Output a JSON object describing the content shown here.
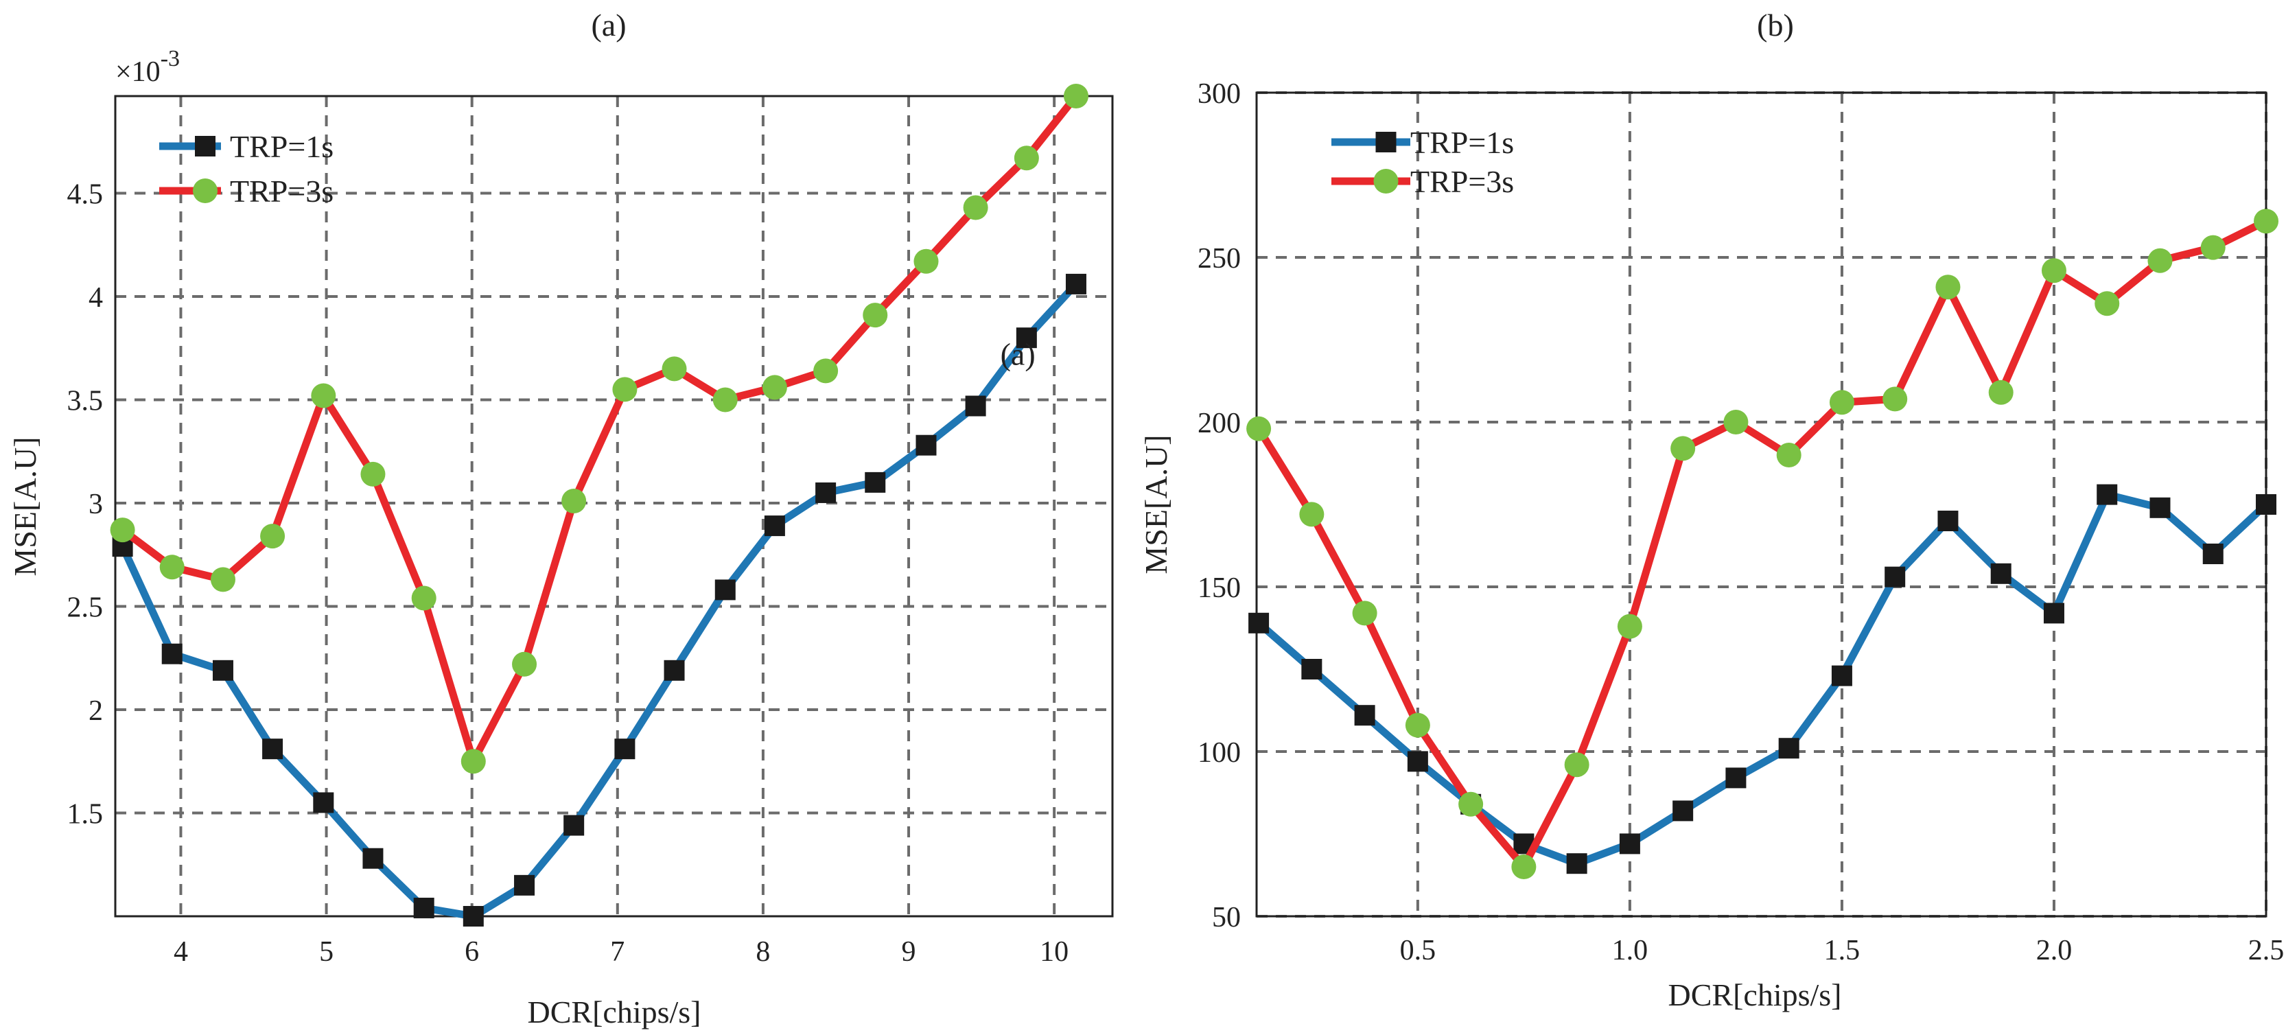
{
  "chart_data": [
    {
      "type": "line",
      "title": "(a)",
      "xlabel": "DCR[chips/s]",
      "ylabel": "MSE[A.U]",
      "exponent_label": "×10",
      "exponent_power": "-3",
      "xlim": [
        3.55,
        10.4
      ],
      "ylim": [
        1.0,
        4.97
      ],
      "xticks": [
        4,
        5,
        6,
        7,
        8,
        9,
        10
      ],
      "xtick_labels": [
        "4",
        "5",
        "6",
        "7",
        "8",
        "9",
        "10"
      ],
      "yticks": [
        1.5,
        2,
        2.5,
        3,
        3.5,
        4,
        4.5
      ],
      "ytick_labels": [
        "1.5",
        "2",
        "2.5",
        "3",
        "3.5",
        "4",
        "4.5"
      ],
      "grid": true,
      "legend_position": "top-left",
      "annotation": "(a)",
      "annotation_at": [
        9.75,
        3.67
      ],
      "x": [
        3.6,
        3.94,
        4.29,
        4.63,
        4.98,
        5.32,
        5.67,
        6.01,
        6.36,
        6.7,
        7.05,
        7.39,
        7.74,
        8.08,
        8.43,
        8.77,
        9.12,
        9.46,
        9.81,
        10.15,
        10.4
      ],
      "series": [
        {
          "name": "TRP=1s",
          "color": "#1f77b4",
          "marker": "square",
          "marker_color": "#1a1a1a",
          "values": [
            2.79,
            2.27,
            2.19,
            1.81,
            1.55,
            1.28,
            1.04,
            1.0,
            1.15,
            1.44,
            1.81,
            2.19,
            2.58,
            2.89,
            3.05,
            3.1,
            3.28,
            3.47,
            3.8,
            4.06,
            null
          ]
        },
        {
          "name": "TRP=3s",
          "color": "#e8282b",
          "marker": "circle",
          "marker_color": "#7ac143",
          "values": [
            2.87,
            2.69,
            2.63,
            2.84,
            3.52,
            3.14,
            2.54,
            1.75,
            2.22,
            3.01,
            3.55,
            3.65,
            3.5,
            3.56,
            3.64,
            3.91,
            4.17,
            4.43,
            4.67,
            4.97,
            null
          ]
        }
      ]
    },
    {
      "type": "line",
      "title": "(b)",
      "xlabel": "DCR[chips/s]",
      "ylabel": "MSE[A.U]",
      "xlim": [
        0.12,
        2.5
      ],
      "ylim": [
        50,
        300
      ],
      "xticks": [
        0.5,
        1.0,
        1.5,
        2.0,
        2.5
      ],
      "xtick_labels": [
        "0.5",
        "1.0",
        "1.5",
        "2.0",
        "2.5"
      ],
      "yticks": [
        50,
        100,
        150,
        200,
        250,
        300
      ],
      "ytick_labels": [
        "50",
        "100",
        "150",
        "200",
        "250",
        "300"
      ],
      "grid": true,
      "legend_position": "top-left",
      "x": [
        0.125,
        0.25,
        0.375,
        0.5,
        0.625,
        0.75,
        0.875,
        1.0,
        1.125,
        1.25,
        1.375,
        1.5,
        1.625,
        1.75,
        1.875,
        2.0,
        2.125,
        2.25,
        2.375,
        2.5
      ],
      "series": [
        {
          "name": "TRP=1s",
          "color": "#1f77b4",
          "marker": "square",
          "marker_color": "#1a1a1a",
          "values": [
            139,
            125,
            111,
            97,
            84,
            72,
            66,
            72,
            82,
            92,
            101,
            123,
            153,
            170,
            154,
            142,
            178,
            174,
            160,
            175
          ]
        },
        {
          "name": "TRP=3s",
          "color": "#e8282b",
          "marker": "circle",
          "marker_color": "#7ac143",
          "values": [
            198,
            172,
            142,
            108,
            84,
            65,
            96,
            138,
            192,
            200,
            190,
            206,
            207,
            241,
            209,
            246,
            236,
            249,
            253,
            261
          ]
        }
      ]
    }
  ]
}
